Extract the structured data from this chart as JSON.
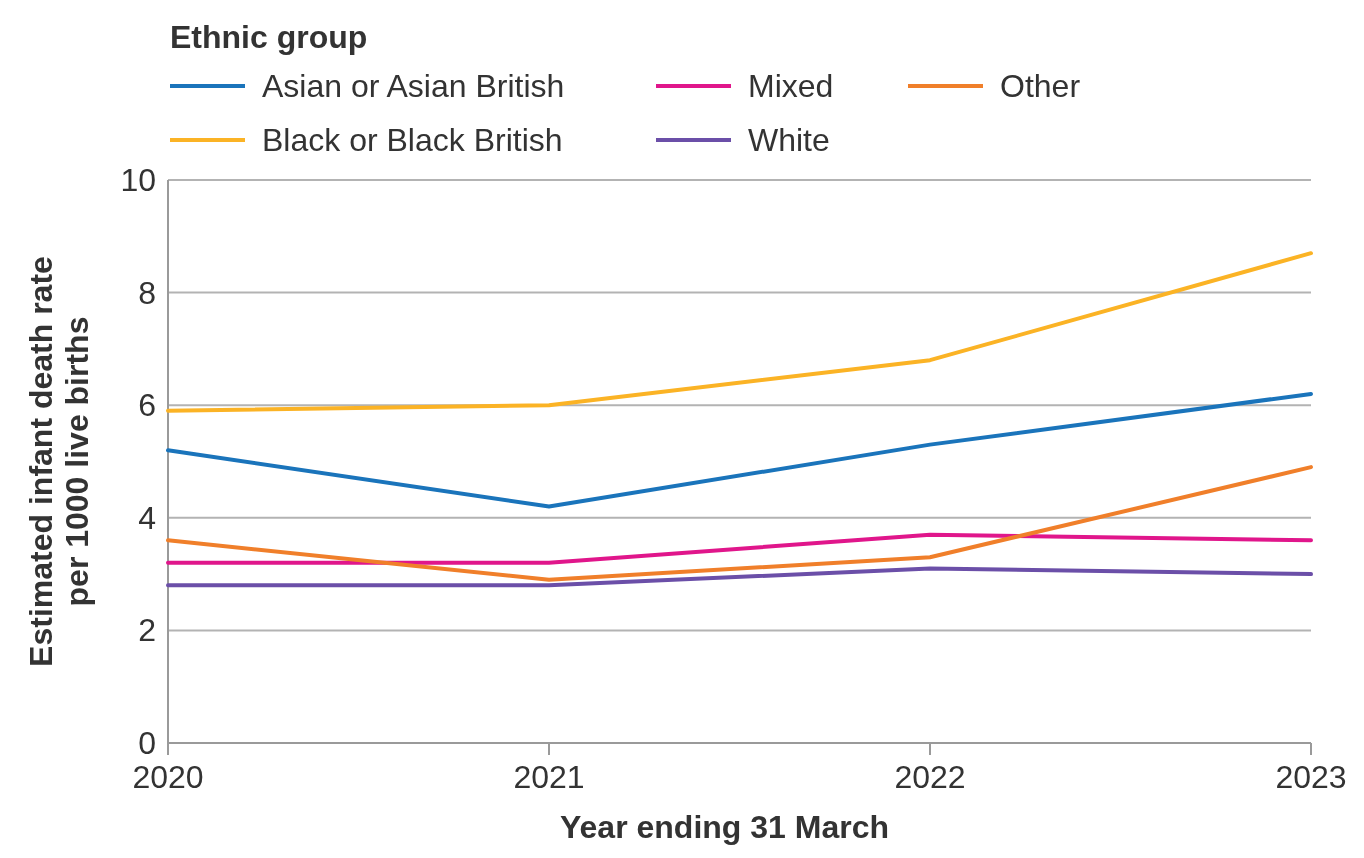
{
  "chart_data": {
    "type": "line",
    "legend_title": "Ethnic group",
    "xlabel": "Year ending 31 March",
    "ylabel": "Estimated infant death rate per 1000 live births",
    "categories": [
      "2020",
      "2021",
      "2022",
      "2023"
    ],
    "series": [
      {
        "name": "Asian or Asian British",
        "color": "#1a74bb",
        "values": [
          5.2,
          4.2,
          5.3,
          6.2
        ]
      },
      {
        "name": "Black or Black British",
        "color": "#fbb325",
        "values": [
          5.9,
          6.0,
          6.8,
          8.7
        ]
      },
      {
        "name": "Mixed",
        "color": "#e0168b",
        "values": [
          3.2,
          3.2,
          3.7,
          3.6
        ]
      },
      {
        "name": "White",
        "color": "#6b4fa8",
        "values": [
          2.8,
          2.8,
          3.1,
          3.0
        ]
      },
      {
        "name": "Other",
        "color": "#f07f2a",
        "values": [
          3.6,
          2.9,
          3.3,
          4.9
        ]
      }
    ],
    "ylim": [
      0,
      10
    ],
    "yticks": [
      0,
      2,
      4,
      6,
      8,
      10
    ],
    "grid": "y",
    "legend": "top left",
    "marker": "none",
    "line_style": "solid"
  }
}
